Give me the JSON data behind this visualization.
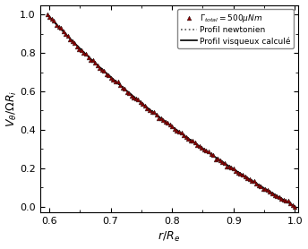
{
  "title": "",
  "xlabel": "$r/R_e$",
  "ylabel": "$V_\\theta/\\Omega R_i$",
  "xlim": [
    0.585,
    1.005
  ],
  "ylim": [
    -0.03,
    1.05
  ],
  "xticks": [
    0.6,
    0.7,
    0.8,
    0.9,
    1.0
  ],
  "yticks": [
    0.0,
    0.2,
    0.4,
    0.6,
    0.8,
    1.0
  ],
  "eta": 0.597,
  "legend_labels": [
    "$\\Gamma_{total} = 500\\mu Nm$",
    "Profil newtonien",
    "Profil visqueux calculé"
  ],
  "marker_color": "#8B0000",
  "line_newtonian_color": "#555555",
  "line_viscous_color": "#000000",
  "background_color": "#ffffff",
  "fig_background": "#ffffff",
  "viscous_alpha": 0.04,
  "n_exp_points": 110,
  "noise_std": 0.004
}
